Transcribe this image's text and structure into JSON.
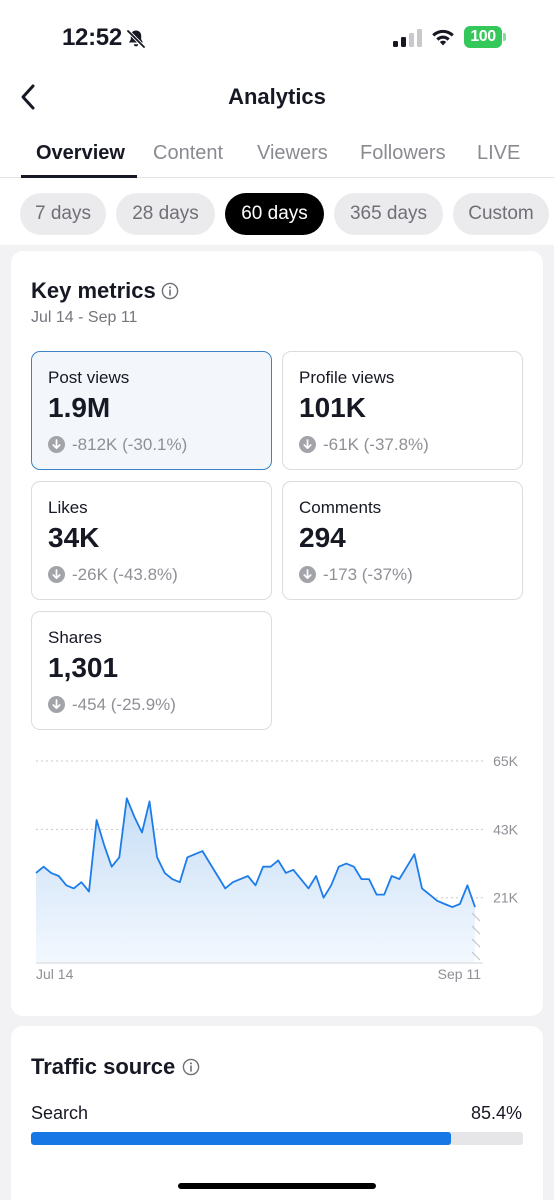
{
  "status_bar": {
    "time": "12:52",
    "battery": "100"
  },
  "nav": {
    "title": "Analytics"
  },
  "tabs": [
    {
      "label": "Overview"
    },
    {
      "label": "Content"
    },
    {
      "label": "Viewers"
    },
    {
      "label": "Followers"
    },
    {
      "label": "LIVE"
    }
  ],
  "active_tab": "Overview",
  "ranges": [
    {
      "label": "7 days"
    },
    {
      "label": "28 days"
    },
    {
      "label": "60 days"
    },
    {
      "label": "365 days"
    },
    {
      "label": "Custom"
    }
  ],
  "active_range": "60 days",
  "key_metrics": {
    "title": "Key metrics",
    "date_range": "Jul 14 - Sep 11",
    "items": [
      {
        "label": "Post views",
        "value": "1.9M",
        "change": "-812K (-30.1%)"
      },
      {
        "label": "Profile views",
        "value": "101K",
        "change": "-61K (-37.8%)"
      },
      {
        "label": "Likes",
        "value": "34K",
        "change": "-26K (-43.8%)"
      },
      {
        "label": "Comments",
        "value": "294",
        "change": "-173 (-37%)"
      },
      {
        "label": "Shares",
        "value": "1,301",
        "change": "-454 (-25.9%)"
      }
    ]
  },
  "chart_data": {
    "type": "area",
    "series": [
      {
        "values": [
          29,
          31,
          29,
          28,
          25,
          24,
          26,
          23,
          46,
          38,
          31,
          34,
          53,
          47,
          42,
          52,
          34,
          29,
          27,
          26,
          34,
          35,
          36,
          32,
          28,
          24,
          26,
          27,
          28,
          25,
          31,
          31,
          33,
          29,
          30,
          27,
          24,
          28,
          21,
          25,
          31,
          32,
          31,
          27,
          27,
          22,
          22,
          28,
          27,
          31,
          35,
          24,
          22,
          20,
          19,
          18,
          19,
          25,
          18
        ]
      }
    ],
    "x_labels": [
      "Jul 14",
      "Sep 11"
    ],
    "y_ticks": [
      "65K",
      "43K",
      "21K"
    ],
    "y_tick_values": [
      65,
      43,
      21
    ],
    "ylim": [
      0,
      65
    ],
    "colors": {
      "line": "#1d7de8",
      "fill_top": "#c7def6",
      "fill_bottom": "#f3f8fe",
      "grid": "#c8c8cc"
    },
    "grid": true
  },
  "traffic_source": {
    "title": "Traffic source",
    "items": [
      {
        "label": "Search",
        "percent": "85.4%",
        "fraction": 0.854
      }
    ]
  }
}
